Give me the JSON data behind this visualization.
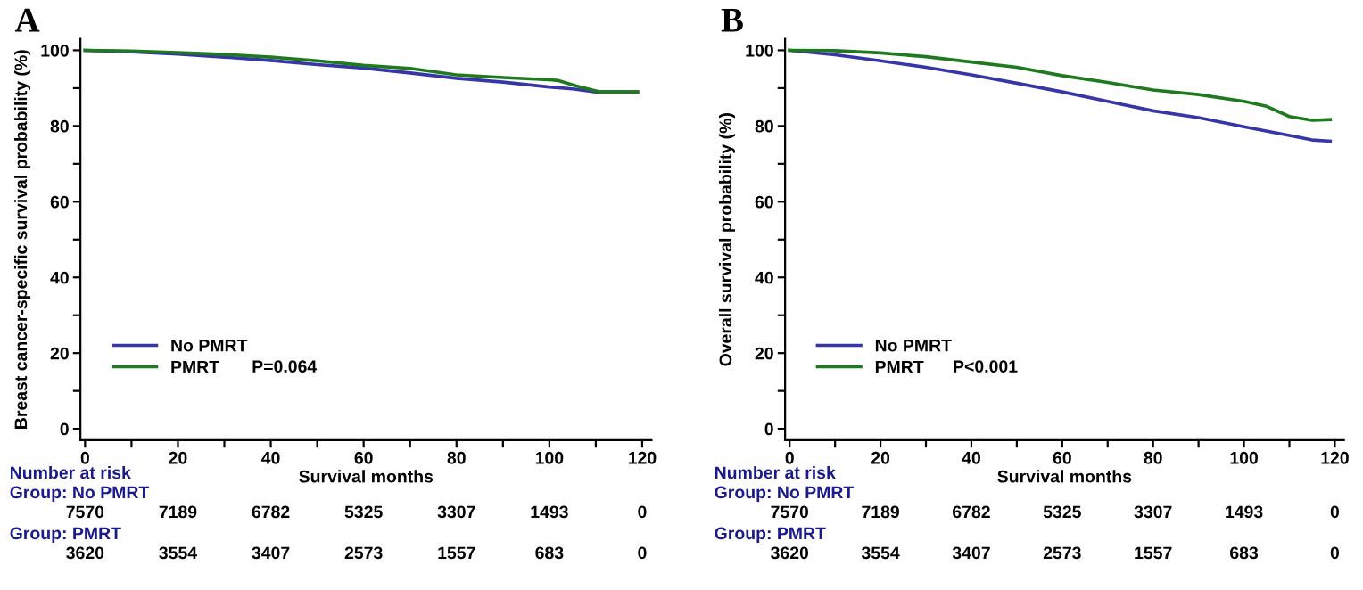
{
  "chart_data": [
    {
      "type": "line",
      "title": "A",
      "xlabel": "Survival months",
      "ylabel": "Breast cancer-specific survival probability (%)",
      "legend": "bottom left",
      "grid": false,
      "series": [
        {
          "name": "No PMRT",
          "color": "#3636a8",
          "x": [
            0,
            10,
            20,
            30,
            40,
            50,
            60,
            70,
            80,
            90,
            100,
            105,
            110,
            119
          ],
          "values": [
            100,
            99.6,
            99,
            98.2,
            97.3,
            96.2,
            95.3,
            94,
            92.6,
            91.6,
            90.3,
            89.8,
            89,
            89
          ]
        },
        {
          "name": "PMRT",
          "color": "#1f7a1f",
          "x": [
            0,
            10,
            20,
            30,
            40,
            50,
            60,
            70,
            80,
            90,
            100,
            102,
            106,
            111,
            119
          ],
          "values": [
            100,
            99.8,
            99.4,
            98.9,
            98.2,
            97.2,
            96,
            95.2,
            93.5,
            92.8,
            92.2,
            92,
            90.5,
            89,
            89
          ]
        }
      ],
      "xlim": [
        -1,
        122
      ],
      "ylim": [
        -3,
        103
      ],
      "xticks": [
        0,
        {
          "value": 10,
          "label": null
        },
        20,
        {
          "value": 30,
          "label": null
        },
        40,
        {
          "value": 50,
          "label": null
        },
        60,
        {
          "value": 70,
          "label": null
        },
        80,
        {
          "value": 90,
          "label": null
        },
        100,
        {
          "value": 110,
          "label": null
        },
        120
      ],
      "yticks": [
        0,
        {
          "value": 10,
          "label": null
        },
        20,
        {
          "value": 30,
          "label": null
        },
        40,
        {
          "value": 50,
          "label": null
        },
        60,
        {
          "value": 70,
          "label": null
        },
        80,
        {
          "value": 90,
          "label": null
        },
        100
      ],
      "annotations": [
        "P=0.064",
        "Number at risk",
        "Group: No PMRT",
        "7570",
        "7189",
        "6782",
        "5325",
        "3307",
        "1493",
        "0",
        "Group: PMRT",
        "3620",
        "3554",
        "3407",
        "2573",
        "1557",
        "683",
        "0"
      ]
    },
    {
      "type": "line",
      "title": "B",
      "xlabel": "Survival months",
      "ylabel": "Overall survival probability (%)",
      "legend": "bottom left",
      "grid": false,
      "series": [
        {
          "name": "No PMRT",
          "color": "#3636a8",
          "x": [
            0,
            10,
            20,
            30,
            40,
            50,
            60,
            70,
            80,
            90,
            100,
            110,
            115,
            119
          ],
          "values": [
            100,
            98.8,
            97.2,
            95.5,
            93.5,
            91.3,
            89,
            86.5,
            84,
            82.2,
            79.8,
            77.5,
            76.3,
            76
          ]
        },
        {
          "name": "PMRT",
          "color": "#1f7a1f",
          "x": [
            0,
            10,
            20,
            30,
            40,
            50,
            60,
            70,
            80,
            90,
            100,
            105,
            110,
            115,
            119
          ],
          "values": [
            100,
            99.9,
            99.3,
            98.3,
            96.9,
            95.5,
            93.3,
            91.5,
            89.5,
            88.3,
            86.5,
            85.2,
            82.5,
            81.5,
            81.7
          ]
        }
      ],
      "xlim": [
        -1,
        122
      ],
      "ylim": [
        -3,
        103
      ],
      "xticks": [
        0,
        {
          "value": 10,
          "label": null
        },
        20,
        {
          "value": 30,
          "label": null
        },
        40,
        {
          "value": 50,
          "label": null
        },
        60,
        {
          "value": 70,
          "label": null
        },
        80,
        {
          "value": 90,
          "label": null
        },
        100,
        {
          "value": 110,
          "label": null
        },
        120
      ],
      "yticks": [
        0,
        {
          "value": 10,
          "label": null
        },
        20,
        {
          "value": 30,
          "label": null
        },
        40,
        {
          "value": 50,
          "label": null
        },
        60,
        {
          "value": 70,
          "label": null
        },
        80,
        {
          "value": 90,
          "label": null
        },
        100
      ],
      "annotations": [
        "P<0.001",
        "Number at risk",
        "Group: No PMRT",
        "7570",
        "7189",
        "6782",
        "5325",
        "3307",
        "1493",
        "0",
        "Group: PMRT",
        "3620",
        "3554",
        "3407",
        "2573",
        "1557",
        "683",
        "0"
      ]
    }
  ]
}
